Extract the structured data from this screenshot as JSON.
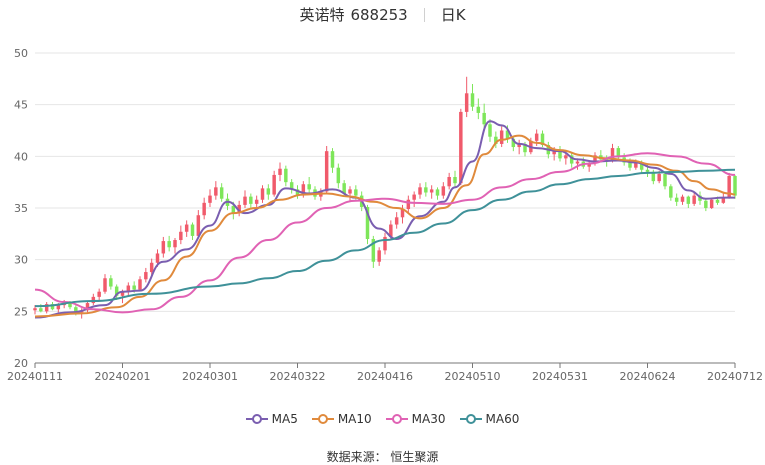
{
  "header": {
    "name": "英诺特",
    "code": "688253",
    "period": "日K"
  },
  "source": "数据来源：  恒生聚源",
  "colors": {
    "up": "#f05a6b",
    "down": "#7ee65a",
    "ma5": "#7a5eb0",
    "ma10": "#e08a3c",
    "ma30": "#e062b4",
    "ma60": "#3f9199",
    "grid": "#e6e6e6",
    "axis": "#777777"
  },
  "chart_data": {
    "type": "candlestick",
    "ylim": [
      20,
      50
    ],
    "yticks": [
      20,
      25,
      30,
      35,
      40,
      45,
      50
    ],
    "xticks": [
      "20240111",
      "20240201",
      "20240301",
      "20240322",
      "20240416",
      "20240510",
      "20240531",
      "20240624",
      "20240712"
    ],
    "n_days": 121,
    "xtick_index": [
      0,
      15,
      30,
      45,
      60,
      75,
      90,
      105,
      120
    ],
    "ohlc": [
      [
        25.1,
        25.6,
        24.7,
        25.3
      ],
      [
        25.3,
        25.7,
        24.9,
        25.0
      ],
      [
        25.0,
        25.9,
        24.8,
        25.7
      ],
      [
        25.7,
        25.9,
        25.1,
        25.2
      ],
      [
        25.2,
        25.8,
        24.9,
        25.6
      ],
      [
        25.6,
        26.1,
        25.3,
        25.9
      ],
      [
        25.9,
        26.0,
        25.2,
        25.4
      ],
      [
        25.4,
        25.6,
        24.6,
        24.9
      ],
      [
        24.9,
        25.3,
        24.3,
        25.1
      ],
      [
        25.1,
        26.0,
        24.9,
        25.8
      ],
      [
        25.8,
        26.7,
        25.6,
        26.4
      ],
      [
        26.4,
        27.2,
        26.1,
        26.9
      ],
      [
        26.9,
        28.6,
        26.7,
        28.2
      ],
      [
        28.2,
        28.5,
        27.1,
        27.4
      ],
      [
        27.4,
        27.6,
        26.1,
        26.5
      ],
      [
        26.5,
        27.1,
        25.8,
        26.9
      ],
      [
        26.9,
        27.8,
        26.5,
        27.5
      ],
      [
        27.5,
        27.9,
        26.8,
        27.1
      ],
      [
        27.1,
        28.4,
        27.0,
        28.1
      ],
      [
        28.1,
        29.2,
        27.8,
        28.8
      ],
      [
        28.8,
        30.1,
        28.5,
        29.7
      ],
      [
        29.7,
        31.0,
        29.3,
        30.6
      ],
      [
        30.6,
        32.2,
        30.2,
        31.8
      ],
      [
        31.8,
        32.3,
        30.8,
        31.2
      ],
      [
        31.2,
        32.1,
        30.6,
        31.9
      ],
      [
        31.9,
        33.3,
        31.5,
        32.7
      ],
      [
        32.7,
        33.8,
        32.2,
        33.4
      ],
      [
        33.4,
        33.6,
        31.9,
        32.3
      ],
      [
        32.3,
        34.8,
        32.1,
        34.3
      ],
      [
        34.3,
        36.0,
        33.9,
        35.5
      ],
      [
        35.5,
        36.8,
        35.1,
        36.2
      ],
      [
        36.2,
        37.6,
        35.8,
        37.0
      ],
      [
        37.0,
        37.4,
        35.6,
        35.9
      ],
      [
        35.9,
        36.4,
        34.8,
        35.2
      ],
      [
        35.2,
        35.6,
        33.9,
        34.5
      ],
      [
        34.5,
        35.7,
        34.2,
        35.3
      ],
      [
        35.3,
        36.7,
        35.0,
        36.1
      ],
      [
        36.1,
        36.4,
        35.0,
        35.4
      ],
      [
        35.4,
        36.2,
        34.9,
        35.8
      ],
      [
        35.8,
        37.2,
        35.5,
        36.9
      ],
      [
        36.9,
        37.3,
        35.8,
        36.3
      ],
      [
        36.3,
        38.6,
        36.1,
        38.2
      ],
      [
        38.2,
        39.4,
        37.6,
        38.8
      ],
      [
        38.8,
        39.1,
        37.1,
        37.5
      ],
      [
        37.5,
        37.8,
        36.4,
        36.8
      ],
      [
        36.8,
        37.2,
        35.9,
        36.3
      ],
      [
        36.3,
        37.6,
        36.0,
        37.3
      ],
      [
        37.3,
        38.0,
        36.5,
        36.8
      ],
      [
        36.8,
        37.1,
        35.8,
        36.1
      ],
      [
        36.1,
        36.9,
        35.7,
        36.6
      ],
      [
        36.6,
        41.0,
        36.4,
        40.5
      ],
      [
        40.5,
        40.8,
        38.4,
        38.9
      ],
      [
        38.9,
        39.3,
        36.9,
        37.4
      ],
      [
        37.4,
        37.7,
        36.1,
        36.4
      ],
      [
        36.4,
        37.1,
        35.6,
        36.8
      ],
      [
        36.8,
        37.2,
        35.8,
        36.2
      ],
      [
        36.2,
        36.6,
        34.7,
        35.1
      ],
      [
        35.1,
        35.3,
        31.5,
        32.0
      ],
      [
        32.0,
        32.3,
        29.2,
        29.8
      ],
      [
        29.8,
        31.2,
        29.4,
        30.9
      ],
      [
        30.9,
        32.6,
        30.5,
        32.2
      ],
      [
        32.2,
        33.8,
        31.9,
        33.4
      ],
      [
        33.4,
        34.6,
        33.0,
        34.1
      ],
      [
        34.1,
        35.3,
        33.5,
        34.9
      ],
      [
        34.9,
        36.2,
        34.5,
        35.8
      ],
      [
        35.8,
        36.6,
        35.1,
        36.3
      ],
      [
        36.3,
        37.4,
        35.9,
        37.0
      ],
      [
        37.0,
        37.5,
        36.1,
        36.5
      ],
      [
        36.5,
        37.2,
        35.9,
        36.8
      ],
      [
        36.8,
        37.0,
        35.8,
        36.2
      ],
      [
        36.2,
        37.5,
        35.9,
        37.1
      ],
      [
        37.1,
        38.4,
        36.8,
        38.0
      ],
      [
        38.0,
        38.6,
        37.0,
        37.4
      ],
      [
        37.4,
        44.6,
        37.2,
        44.3
      ],
      [
        44.3,
        47.7,
        43.8,
        46.1
      ],
      [
        46.1,
        47.0,
        44.4,
        44.8
      ],
      [
        44.8,
        45.6,
        43.6,
        44.2
      ],
      [
        44.2,
        45.1,
        42.6,
        43.1
      ],
      [
        43.1,
        43.6,
        41.4,
        41.9
      ],
      [
        41.9,
        42.4,
        40.8,
        41.2
      ],
      [
        41.2,
        42.9,
        40.9,
        42.5
      ],
      [
        42.5,
        43.0,
        41.3,
        41.7
      ],
      [
        41.7,
        42.0,
        40.5,
        40.9
      ],
      [
        40.9,
        41.6,
        40.2,
        41.2
      ],
      [
        41.2,
        41.4,
        40.0,
        40.4
      ],
      [
        40.4,
        41.8,
        40.2,
        41.5
      ],
      [
        41.5,
        42.6,
        41.0,
        42.2
      ],
      [
        42.2,
        42.5,
        40.9,
        41.1
      ],
      [
        41.1,
        41.4,
        39.8,
        40.2
      ],
      [
        40.2,
        40.9,
        39.6,
        40.6
      ],
      [
        40.6,
        41.0,
        39.5,
        39.8
      ],
      [
        39.8,
        40.5,
        39.2,
        40.1
      ],
      [
        40.1,
        40.3,
        38.9,
        39.3
      ],
      [
        39.3,
        39.8,
        38.7,
        39.5
      ],
      [
        39.5,
        39.9,
        38.8,
        39.0
      ],
      [
        39.0,
        39.6,
        38.5,
        39.3
      ],
      [
        39.3,
        40.4,
        39.1,
        40.1
      ],
      [
        40.1,
        40.6,
        39.4,
        39.7
      ],
      [
        39.7,
        40.1,
        39.0,
        39.6
      ],
      [
        39.6,
        41.2,
        39.4,
        40.8
      ],
      [
        40.8,
        41.0,
        39.5,
        39.9
      ],
      [
        39.9,
        40.3,
        39.1,
        39.4
      ],
      [
        39.4,
        39.8,
        38.6,
        38.9
      ],
      [
        38.9,
        39.7,
        38.7,
        39.4
      ],
      [
        39.4,
        39.6,
        38.4,
        38.7
      ],
      [
        38.7,
        39.2,
        38.0,
        38.5
      ],
      [
        38.5,
        38.7,
        37.3,
        37.6
      ],
      [
        37.6,
        38.6,
        37.4,
        38.3
      ],
      [
        38.3,
        38.5,
        36.8,
        37.1
      ],
      [
        37.1,
        37.3,
        35.7,
        36.0
      ],
      [
        36.0,
        36.4,
        35.2,
        35.6
      ],
      [
        35.6,
        36.3,
        35.3,
        36.1
      ],
      [
        36.1,
        36.2,
        35.0,
        35.4
      ],
      [
        35.4,
        36.5,
        35.2,
        36.2
      ],
      [
        36.2,
        36.6,
        35.3,
        35.7
      ],
      [
        35.7,
        35.9,
        34.7,
        35.0
      ],
      [
        35.0,
        36.0,
        34.9,
        35.8
      ],
      [
        35.8,
        36.1,
        35.3,
        35.5
      ],
      [
        35.5,
        36.4,
        35.4,
        36.0
      ],
      [
        36.0,
        38.4,
        35.9,
        38.1
      ],
      [
        38.1,
        38.2,
        35.9,
        36.2
      ]
    ],
    "ma": [
      {
        "name": "MA5",
        "color_key": "ma5",
        "points": [
          [
            0,
            24.4
          ],
          [
            6,
            24.9
          ],
          [
            12,
            25.6
          ],
          [
            15,
            26.9
          ],
          [
            18,
            27.0
          ],
          [
            22,
            29.8
          ],
          [
            26,
            31.0
          ],
          [
            30,
            33.3
          ],
          [
            33,
            35.6
          ],
          [
            36,
            34.5
          ],
          [
            40,
            35.3
          ],
          [
            43,
            36.9
          ],
          [
            47,
            36.4
          ],
          [
            51,
            36.8
          ],
          [
            55,
            36.0
          ],
          [
            59,
            33.0
          ],
          [
            62,
            32.0
          ],
          [
            66,
            34.2
          ],
          [
            70,
            35.6
          ],
          [
            72,
            37.0
          ],
          [
            75,
            39.5
          ],
          [
            78,
            43.4
          ],
          [
            80,
            43.0
          ],
          [
            83,
            41.2
          ],
          [
            86,
            40.8
          ],
          [
            90,
            40.5
          ],
          [
            93,
            39.7
          ],
          [
            96,
            39.5
          ],
          [
            100,
            39.6
          ],
          [
            103,
            39.4
          ],
          [
            106,
            38.9
          ],
          [
            109,
            38.3
          ],
          [
            112,
            36.7
          ],
          [
            115,
            35.9
          ],
          [
            118,
            36.0
          ],
          [
            120,
            36.0
          ]
        ]
      },
      {
        "name": "MA10",
        "color_key": "ma10",
        "points": [
          [
            0,
            24.5
          ],
          [
            8,
            24.8
          ],
          [
            14,
            25.4
          ],
          [
            18,
            26.4
          ],
          [
            22,
            28.0
          ],
          [
            26,
            30.3
          ],
          [
            30,
            32.8
          ],
          [
            34,
            34.5
          ],
          [
            38,
            35.0
          ],
          [
            42,
            35.8
          ],
          [
            46,
            36.3
          ],
          [
            50,
            36.4
          ],
          [
            54,
            36.1
          ],
          [
            58,
            35.6
          ],
          [
            62,
            35.0
          ],
          [
            66,
            34.0
          ],
          [
            70,
            35.0
          ],
          [
            74,
            37.2
          ],
          [
            77,
            40.2
          ],
          [
            80,
            41.6
          ],
          [
            83,
            42.0
          ],
          [
            86,
            41.3
          ],
          [
            90,
            40.6
          ],
          [
            94,
            40.1
          ],
          [
            98,
            39.8
          ],
          [
            102,
            39.6
          ],
          [
            106,
            39.2
          ],
          [
            110,
            38.6
          ],
          [
            113,
            37.6
          ],
          [
            116,
            36.8
          ],
          [
            119,
            36.4
          ],
          [
            120,
            36.3
          ]
        ]
      },
      {
        "name": "MA30",
        "color_key": "ma30",
        "points": [
          [
            0,
            27.1
          ],
          [
            5,
            25.9
          ],
          [
            10,
            25.2
          ],
          [
            15,
            24.9
          ],
          [
            20,
            25.2
          ],
          [
            25,
            26.4
          ],
          [
            30,
            28.0
          ],
          [
            35,
            30.2
          ],
          [
            40,
            31.9
          ],
          [
            45,
            33.6
          ],
          [
            50,
            35.0
          ],
          [
            55,
            35.7
          ],
          [
            60,
            35.9
          ],
          [
            65,
            35.5
          ],
          [
            70,
            35.4
          ],
          [
            75,
            35.8
          ],
          [
            80,
            37.0
          ],
          [
            85,
            37.8
          ],
          [
            90,
            38.5
          ],
          [
            95,
            39.3
          ],
          [
            100,
            40.0
          ],
          [
            105,
            40.3
          ],
          [
            110,
            40.0
          ],
          [
            115,
            39.3
          ],
          [
            120,
            38.2
          ]
        ]
      },
      {
        "name": "MA60",
        "color_key": "ma60",
        "points": [
          [
            0,
            25.5
          ],
          [
            10,
            26.0
          ],
          [
            20,
            26.7
          ],
          [
            30,
            27.4
          ],
          [
            35,
            27.7
          ],
          [
            40,
            28.2
          ],
          [
            45,
            28.9
          ],
          [
            50,
            29.9
          ],
          [
            55,
            30.9
          ],
          [
            60,
            31.9
          ],
          [
            65,
            32.6
          ],
          [
            70,
            33.5
          ],
          [
            75,
            34.8
          ],
          [
            80,
            35.8
          ],
          [
            85,
            36.6
          ],
          [
            90,
            37.3
          ],
          [
            95,
            37.8
          ],
          [
            100,
            38.1
          ],
          [
            105,
            38.4
          ],
          [
            110,
            38.5
          ],
          [
            115,
            38.6
          ],
          [
            120,
            38.7
          ]
        ]
      }
    ]
  }
}
